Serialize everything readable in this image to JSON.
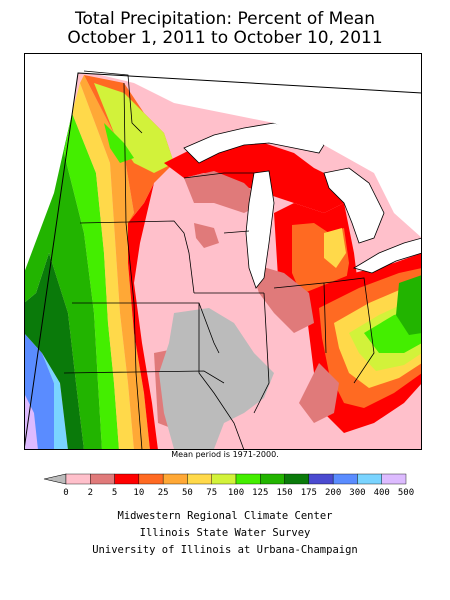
{
  "title": {
    "line1": "Total Precipitation: Percent of Mean",
    "line2": "October 1, 2011 to October 10, 2011"
  },
  "map": {
    "region": "Midwestern United States",
    "base_color": "#ffc0cb"
  },
  "note": "Mean period is 1971-2000.",
  "legend": {
    "ticks": [
      "0",
      "2",
      "5",
      "10",
      "25",
      "50",
      "75",
      "100",
      "125",
      "150",
      "175",
      "200",
      "300",
      "400",
      "500"
    ],
    "colors": [
      "#ffc0cb",
      "#e07a7a",
      "#ff0000",
      "#ff6a22",
      "#ffa836",
      "#ffd94a",
      "#d2f23a",
      "#44ee00",
      "#22b400",
      "#0a7a0a",
      "#4a4ad0",
      "#5a8cff",
      "#7ad4ff",
      "#ddbbff",
      "#b05ad2"
    ],
    "below_zero_color": "#bbbbbb"
  },
  "credits": {
    "line1": "Midwestern Regional Climate Center",
    "line2": "Illinois State Water Survey",
    "line3": "University of Illinois at Urbana-Champaign"
  }
}
